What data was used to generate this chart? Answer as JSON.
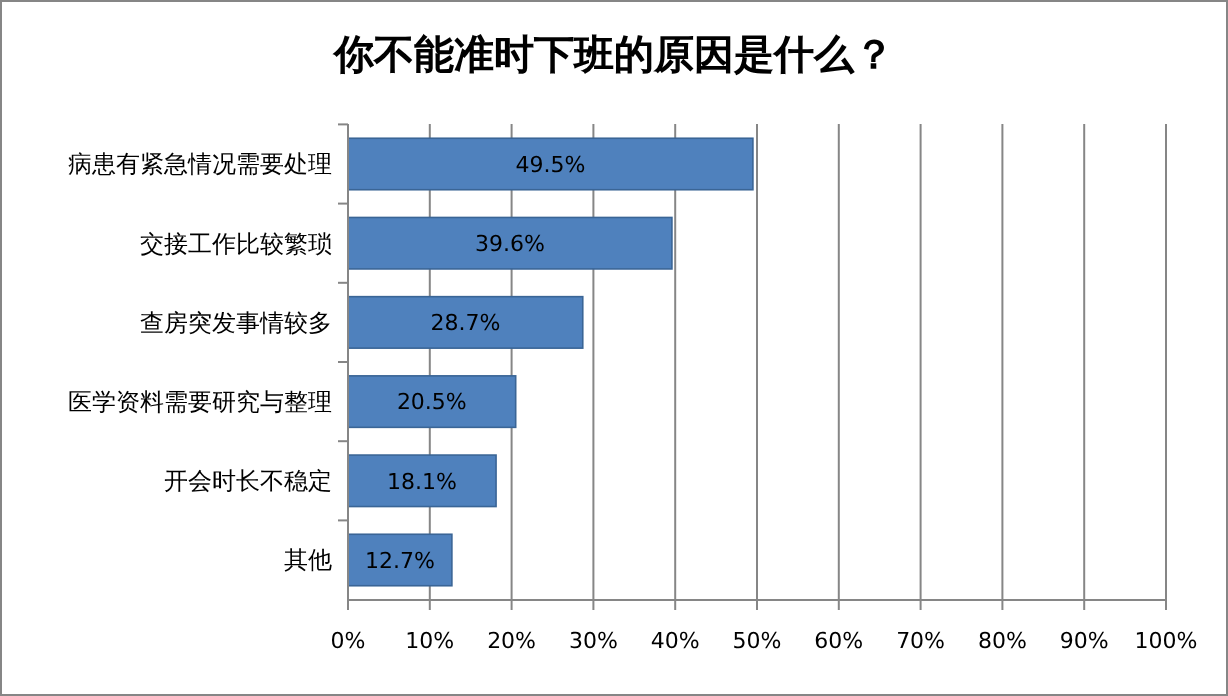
{
  "chart_data": {
    "type": "bar",
    "orientation": "horizontal",
    "title": "你不能准时下班的原因是什么？",
    "categories": [
      "病患有紧急情况需要处理",
      "交接工作比较繁琐",
      "查房突发事情较多",
      "医学资料需要研究与整理",
      "开会时长不稳定",
      "其他"
    ],
    "values": [
      49.5,
      39.6,
      28.7,
      20.5,
      18.1,
      12.7
    ],
    "value_labels": [
      "49.5%",
      "39.6%",
      "28.7%",
      "20.5%",
      "18.1%",
      "12.7%"
    ],
    "color": "#4f81bd",
    "xlim": [
      0,
      100
    ],
    "xticks": [
      {
        "value": 0,
        "label": "0%"
      },
      {
        "value": 10,
        "label": "10%"
      },
      {
        "value": 20,
        "label": "20%"
      },
      {
        "value": 30,
        "label": "30%"
      },
      {
        "value": 40,
        "label": "40%"
      },
      {
        "value": 50,
        "label": "50%"
      },
      {
        "value": 60,
        "label": "60%"
      },
      {
        "value": 70,
        "label": "70%"
      },
      {
        "value": 80,
        "label": "80%"
      },
      {
        "value": 90,
        "label": "90%"
      },
      {
        "value": 100,
        "label": "100%"
      }
    ],
    "grid": "x"
  }
}
